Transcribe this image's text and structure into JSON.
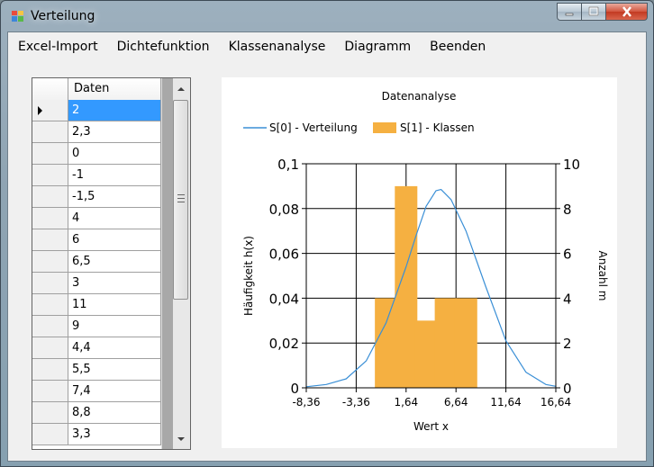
{
  "window": {
    "title": "Verteilung"
  },
  "menu": {
    "items": [
      "Excel-Import",
      "Dichtefunktion",
      "Klassenanalyse",
      "Diagramm",
      "Beenden"
    ]
  },
  "grid": {
    "header": "Daten",
    "rows": [
      "2",
      "2,3",
      "0",
      "-1",
      "-1,5",
      "4",
      "6",
      "6,5",
      "3",
      "11",
      "9",
      "4,4",
      "5,5",
      "7,4",
      "8,8",
      "3,3"
    ],
    "selected_index": 0
  },
  "colors": {
    "line": "#3a8fd6",
    "bar": "#f5b041",
    "selection": "#3399ff"
  },
  "chart_data": {
    "type": "bar",
    "title": "Datenanalyse",
    "xlabel": "Wert x",
    "ylabel": "Häufigkeit h(x)",
    "y2label": "Anzahl m",
    "x_tick_labels": [
      "-8,36",
      "-3,36",
      "1,64",
      "6,64",
      "11,64",
      "16,64"
    ],
    "y_tick_labels": [
      "0",
      "0,02",
      "0,04",
      "0,06",
      "0,08",
      "0,1"
    ],
    "y2_tick_labels": [
      "0",
      "2",
      "4",
      "6",
      "8",
      "10"
    ],
    "xlim": [
      -8.36,
      16.64
    ],
    "ylim": [
      0,
      0.1
    ],
    "y2lim": [
      0,
      10
    ],
    "grid": true,
    "legend_position": "top",
    "series": [
      {
        "name": "S[0] - Verteilung",
        "type": "line",
        "axis": "left",
        "x": [
          -8.36,
          -6.36,
          -4.36,
          -2.36,
          -0.36,
          1.64,
          2.64,
          3.64,
          4.64,
          5.14,
          6.14,
          7.64,
          9.64,
          11.64,
          13.64,
          15.64,
          16.64
        ],
        "y": [
          0.0005,
          0.0015,
          0.004,
          0.012,
          0.029,
          0.054,
          0.068,
          0.081,
          0.088,
          0.0885,
          0.084,
          0.07,
          0.045,
          0.021,
          0.007,
          0.0015,
          0.0007
        ]
      },
      {
        "name": "S[1] - Klassen",
        "type": "bar",
        "axis": "right",
        "x": [
          -0.36,
          1.64,
          3.64,
          5.64,
          7.64
        ],
        "values": [
          4,
          9,
          3,
          4,
          4
        ]
      }
    ]
  }
}
